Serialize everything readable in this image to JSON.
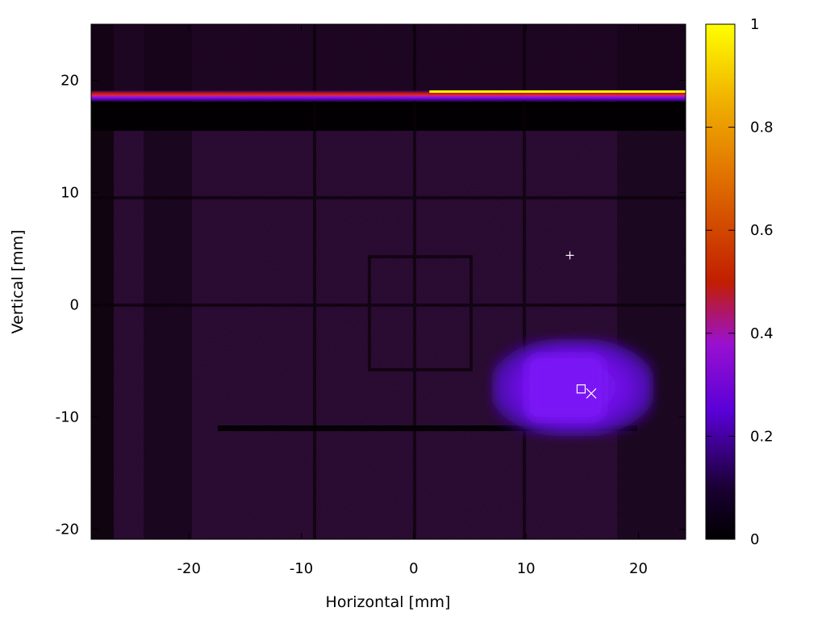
{
  "chart_data": {
    "type": "heatmap",
    "xlabel": "Horizontal [mm]",
    "ylabel": "Vertical [mm]",
    "xlim": [
      -28.7,
      24.2
    ],
    "ylim": [
      -20.9,
      25
    ],
    "x_ticks": [
      -20,
      -10,
      0,
      10,
      20
    ],
    "y_ticks": [
      -20,
      -10,
      0,
      10,
      20
    ],
    "colorbar": {
      "range": [
        0,
        1
      ],
      "ticks": [
        0,
        0.2,
        0.4,
        0.6,
        0.8,
        1
      ],
      "colormap": [
        "#000000",
        "#3a006a",
        "#8a00ff",
        "#c21e00",
        "#f09a00",
        "#ffff00"
      ]
    },
    "background_level": 0.06,
    "features": [
      {
        "name": "hot-stripe",
        "x_range": [
          -28.7,
          24.2
        ],
        "y": 18.6,
        "intensity": 0.55
      },
      {
        "name": "saturated-line",
        "x_range": [
          1.4,
          24.2
        ],
        "y": 19.0,
        "intensity": 1.0
      },
      {
        "name": "bright-spot",
        "x_range": [
          10,
          17
        ],
        "y_range": [
          -10.3,
          -4.5
        ],
        "intensity": 0.3
      }
    ],
    "markers": [
      {
        "symbol": "+",
        "x": 13.9,
        "y": 4.4
      },
      {
        "symbol": "square",
        "x": 14.9,
        "y": -7.5
      },
      {
        "symbol": "x",
        "x": 15.8,
        "y": -7.9
      }
    ]
  }
}
